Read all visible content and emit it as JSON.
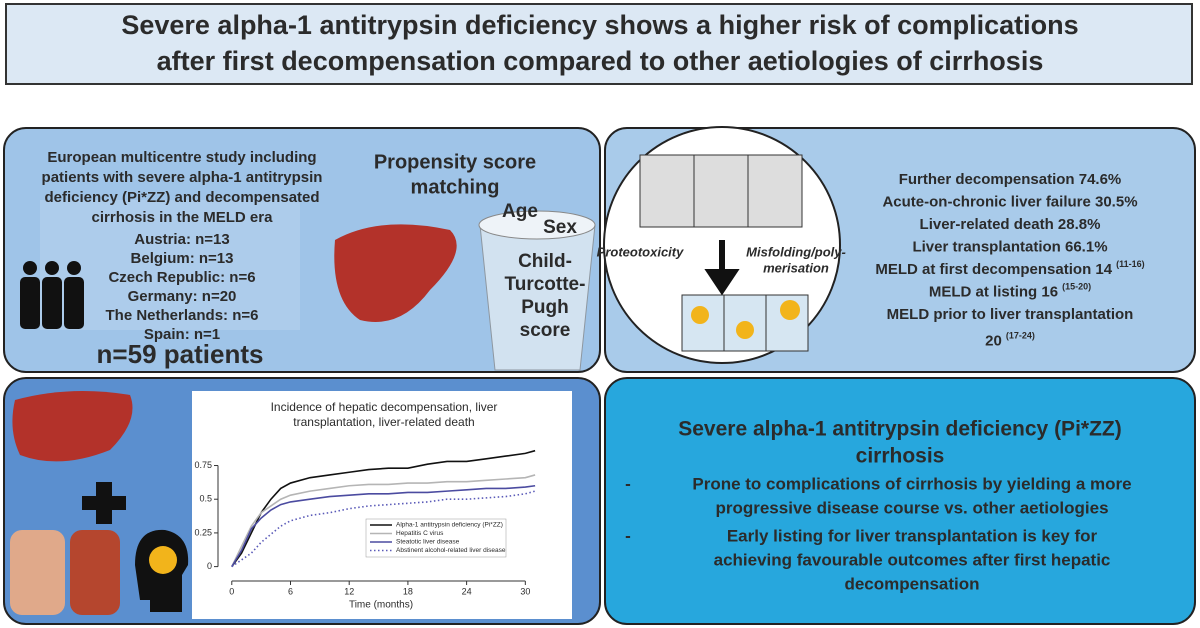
{
  "title": [
    "Severe alpha-1 antitrypsin deficiency shows a higher risk of complications",
    "after first decompensation compared to other aetiologies of cirrhosis"
  ],
  "study": {
    "description": [
      "European multicentre study including",
      "patients with severe alpha-1 antitrypsin",
      "deficiency (Pi*ZZ) and decompensated",
      "cirrhosis in the MELD era"
    ],
    "countries": [
      "Austria: n=13",
      "Belgium: n=13",
      "Czech Republic: n=6",
      "Germany: n=20",
      "The Netherlands: n=6",
      "Spain: n=1"
    ],
    "total": "n=59 patients"
  },
  "matching": {
    "title": [
      "Propensity score",
      "matching"
    ],
    "age": "Age",
    "sex": "Sex",
    "score": [
      "Child-",
      "Turcotte-",
      "Pugh",
      "score"
    ]
  },
  "mechanism": {
    "left": "Proteotoxicity",
    "right": [
      "Misfolding/poly-",
      "merisation"
    ]
  },
  "outcomes": [
    {
      "text": "Further decompensation 74.6%"
    },
    {
      "text": "Acute-on-chronic liver failure 30.5%"
    },
    {
      "text": "Liver-related death 28.8%"
    },
    {
      "text": "Liver transplantation 66.1%"
    },
    {
      "text": "MELD at first decompensation 14",
      "range": "(11-16)"
    },
    {
      "text": "MELD at listing 16",
      "range": "(15-20)"
    },
    {
      "text": "MELD prior to liver transplantation"
    },
    {
      "text": "20",
      "range": "(17-24)"
    }
  ],
  "chart_data": {
    "type": "line",
    "title": [
      "Incidence of hepatic decompensation, liver",
      "transplantation, liver-related death"
    ],
    "x_label": "Time (months)",
    "x": [
      0,
      1,
      2,
      3,
      4,
      5,
      6,
      8,
      10,
      12,
      14,
      16,
      18,
      20,
      22,
      24,
      26,
      28,
      30,
      31
    ],
    "series": [
      {
        "name": "Alpha-1 antitrypsin deficiency (Pi*ZZ)",
        "color": "#111111",
        "linestyle": "solid",
        "values": [
          0,
          0.1,
          0.25,
          0.4,
          0.5,
          0.58,
          0.62,
          0.66,
          0.68,
          0.7,
          0.72,
          0.73,
          0.73,
          0.76,
          0.78,
          0.78,
          0.8,
          0.82,
          0.84,
          0.86
        ]
      },
      {
        "name": "Hepatitis C virus",
        "color": "#b5b5b5",
        "linestyle": "solid",
        "values": [
          0,
          0.15,
          0.3,
          0.4,
          0.45,
          0.5,
          0.53,
          0.56,
          0.58,
          0.6,
          0.61,
          0.61,
          0.62,
          0.62,
          0.63,
          0.63,
          0.64,
          0.65,
          0.66,
          0.68
        ]
      },
      {
        "name": "Steatotic liver disease",
        "color": "#4b4ba0",
        "linestyle": "solid",
        "values": [
          0,
          0.12,
          0.28,
          0.36,
          0.42,
          0.46,
          0.48,
          0.5,
          0.52,
          0.53,
          0.54,
          0.54,
          0.55,
          0.55,
          0.56,
          0.57,
          0.58,
          0.58,
          0.59,
          0.6
        ]
      },
      {
        "name": "Abstinent alcohol-related liver disease",
        "color": "#5a5ab8",
        "linestyle": "dotted",
        "values": [
          0,
          0.05,
          0.1,
          0.18,
          0.24,
          0.3,
          0.34,
          0.38,
          0.4,
          0.43,
          0.45,
          0.46,
          0.47,
          0.48,
          0.5,
          0.5,
          0.51,
          0.52,
          0.54,
          0.56
        ]
      }
    ],
    "xlim": [
      -1,
      31.5
    ],
    "ylim": [
      -0.04,
      0.88
    ],
    "xticks": [
      0,
      6,
      12,
      18,
      24,
      30
    ],
    "yticks": [
      0,
      0.25,
      0.5,
      0.75
    ]
  },
  "conclusion": {
    "title": [
      "Severe alpha-1 antitrypsin deficiency (Pi*ZZ)",
      "cirrhosis"
    ],
    "bullet": "-",
    "bullets": [
      [
        "Prone to complications of cirrhosis by yielding a more",
        "progressive disease course vs. other aetiologies"
      ],
      [
        "Early listing for liver transplantation is key for",
        "achieving favourable outcomes after first hepatic",
        "decompensation"
      ]
    ]
  }
}
